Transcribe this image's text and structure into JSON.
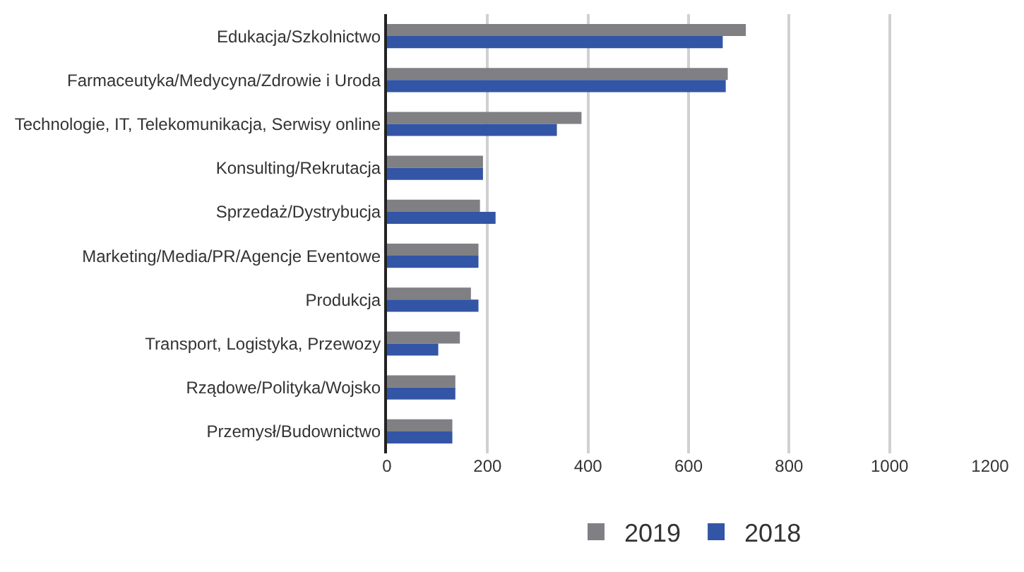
{
  "chart_data": {
    "type": "bar",
    "orientation": "horizontal",
    "categories": [
      "Edukacja/Szkolnictwo",
      "Farmaceutyka/Medycyna/Zdrowie i Uroda",
      "Technologie, IT, Telekomunikacja, Serwisy online",
      "Konsulting/Rekrutacja",
      "Sprzedaż/Dystrybucja",
      "Marketing/Media/PR/Agencje Eventowe",
      "Produkcja",
      "Transport, Logistyka, Przewozy",
      "Rządowe/Polityka/Wojsko",
      "Przemysł/Budownictwo"
    ],
    "series": [
      {
        "name": "2019",
        "color": "#808084",
        "values": [
          714,
          678,
          387,
          191,
          185,
          182,
          167,
          145,
          136,
          130
        ]
      },
      {
        "name": "2018",
        "color": "#3355a5",
        "values": [
          668,
          674,
          338,
          191,
          216,
          182,
          182,
          102,
          136,
          130
        ]
      }
    ],
    "xlim": [
      0,
      1200
    ],
    "xticks": [
      0,
      200,
      400,
      600,
      800,
      1000,
      1200
    ],
    "grid": "x",
    "legend": "bottom"
  }
}
